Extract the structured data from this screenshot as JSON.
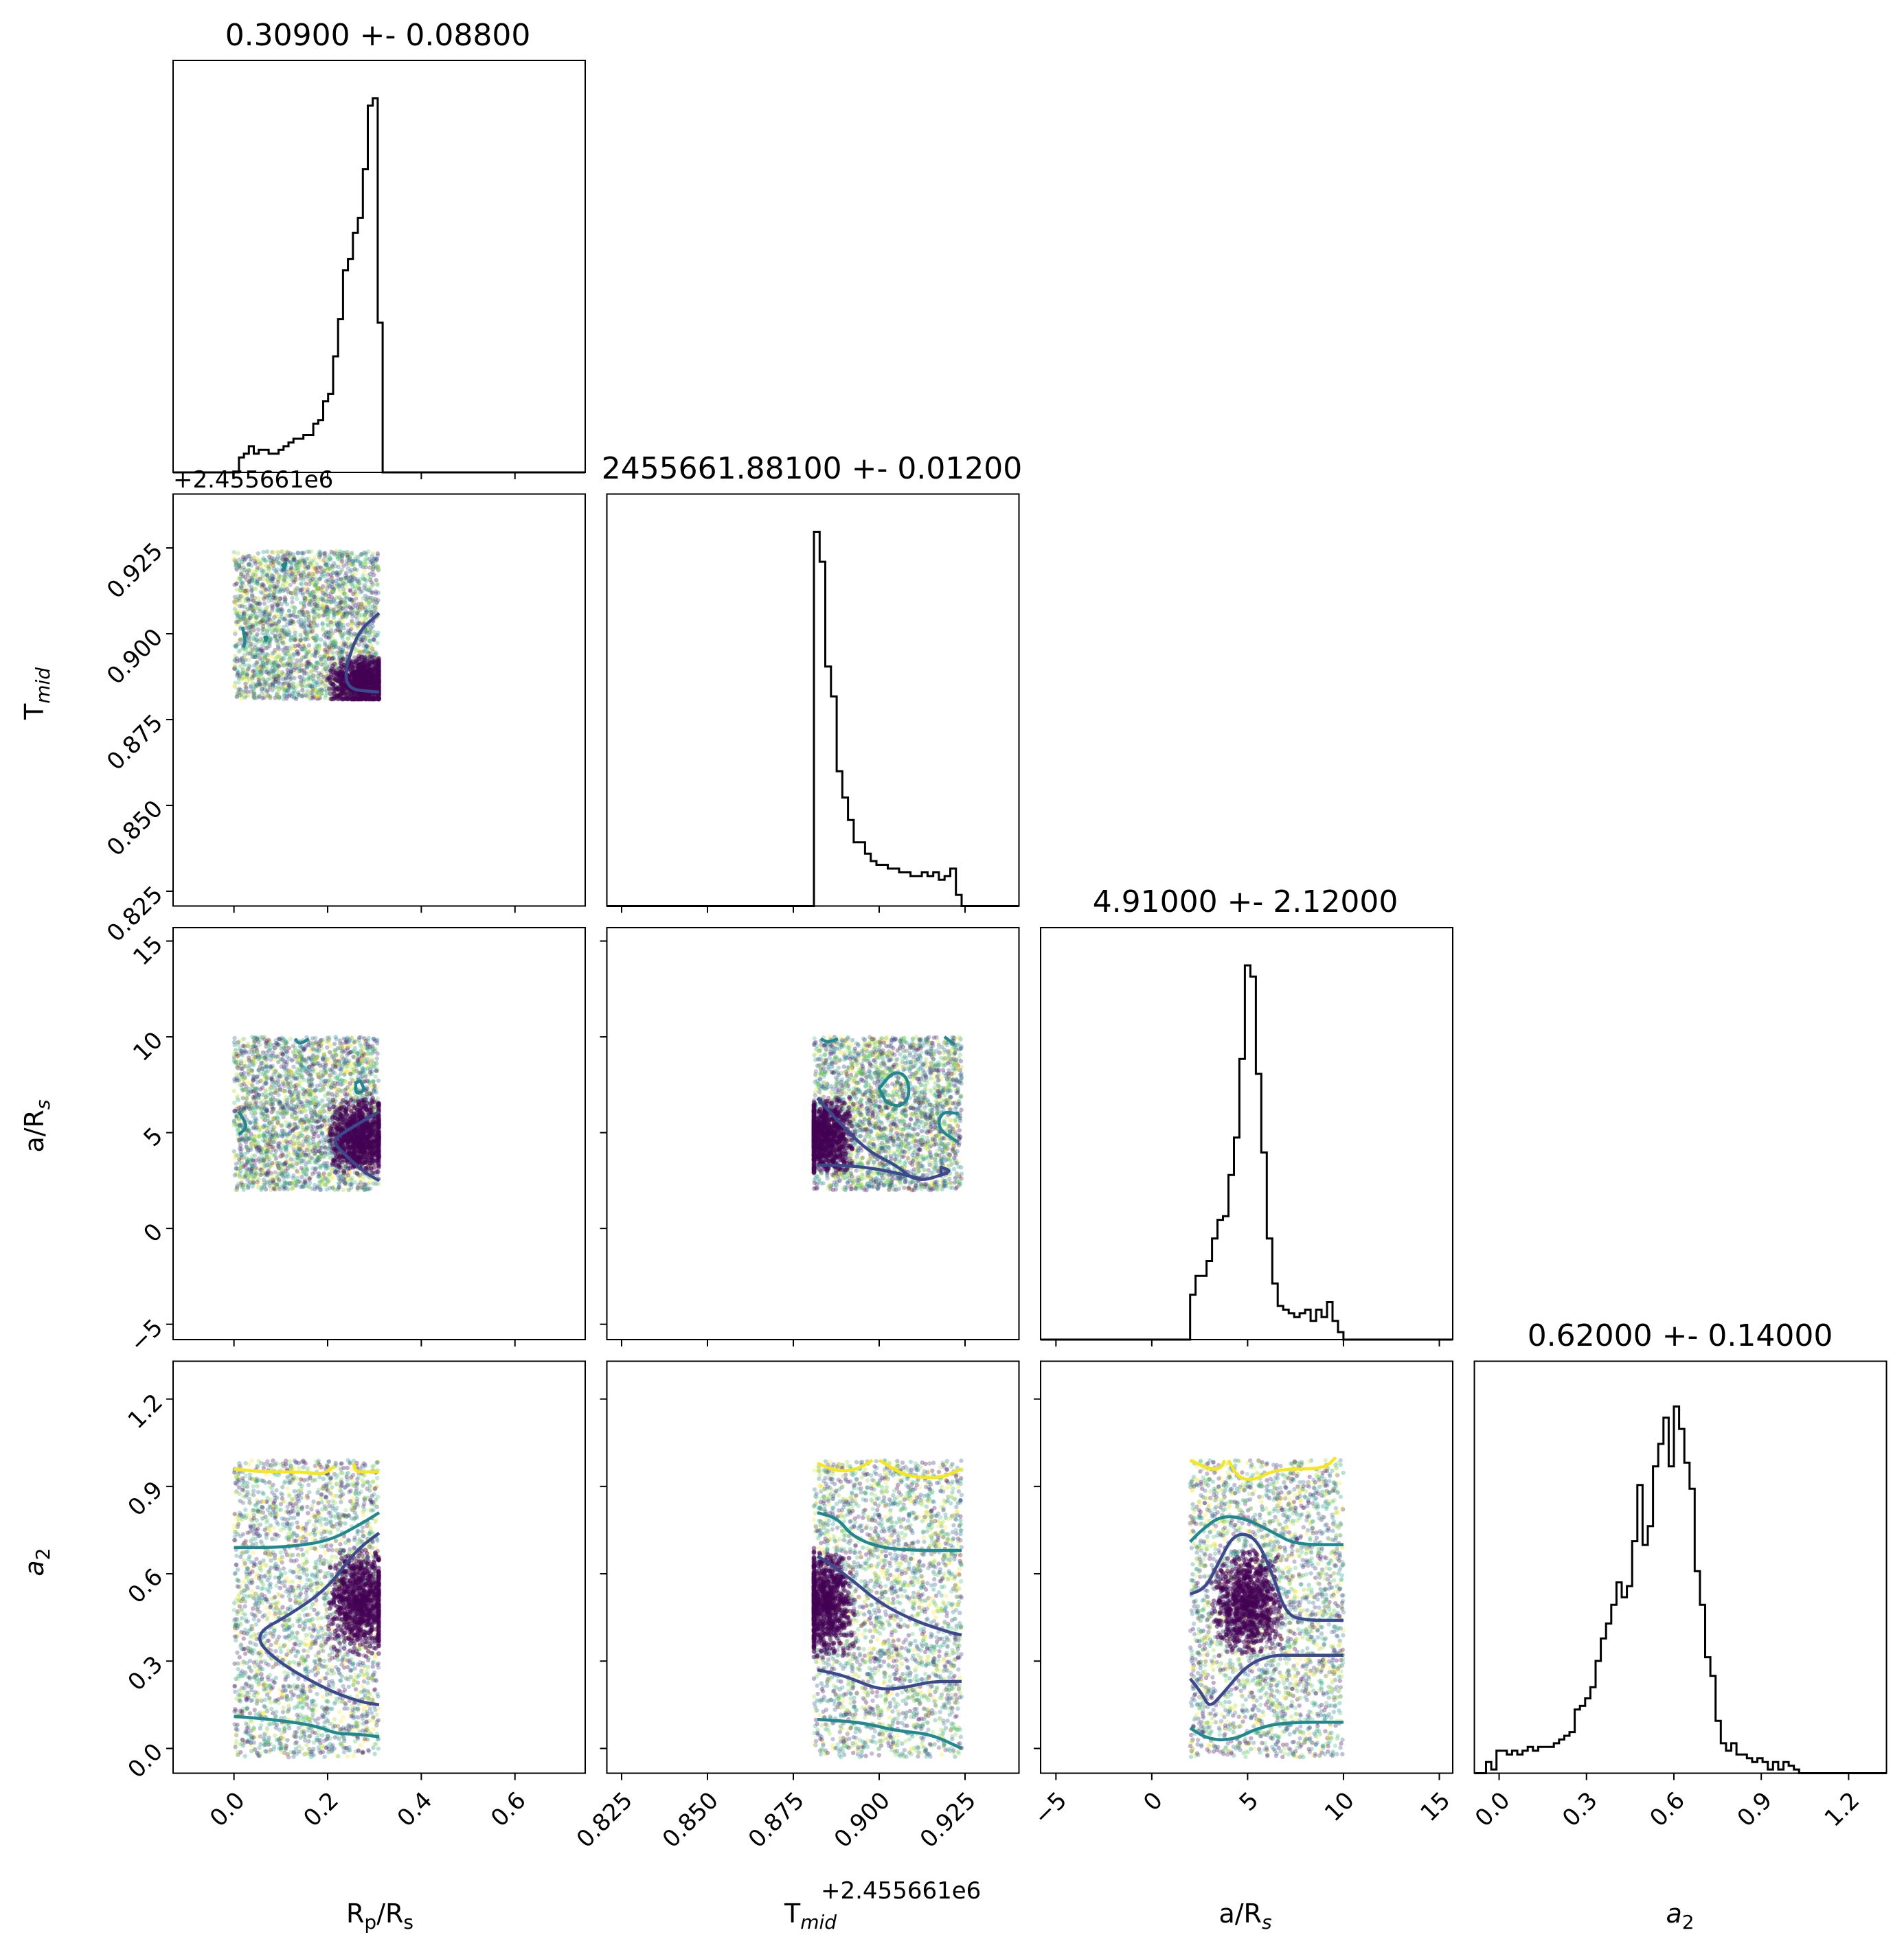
{
  "chart_data": {
    "type": "corner",
    "parameters": [
      {
        "symbol": "R",
        "sub": "p",
        "rest": "/R",
        "sub2": "s",
        "title": "0.30900 +- 0.08800"
      },
      {
        "symbol": "T",
        "sub": "mid",
        "rest": "",
        "sub2": "",
        "title": "2455661.88100 +- 0.01200",
        "offset": "+2.455661e6"
      },
      {
        "symbol": "a/R",
        "sub": "s",
        "rest": "",
        "sub2": "",
        "title": "4.91000 +- 2.12000"
      },
      {
        "symbol": "a",
        "sub": "2",
        "rest": "",
        "sub2": "",
        "title": "0.62000 +- 0.14000",
        "italic": true
      }
    ],
    "ranges": [
      [
        -0.13,
        0.75
      ],
      [
        0.8207,
        0.9407
      ],
      [
        -5.8,
        15.7
      ],
      [
        -0.085,
        1.33
      ]
    ],
    "ticks": [
      [
        0.0,
        0.2,
        0.4,
        0.6
      ],
      [
        0.825,
        0.85,
        0.875,
        0.9,
        0.925
      ],
      [
        -5,
        0,
        5,
        10,
        15
      ],
      [
        0.0,
        0.3,
        0.6,
        0.9,
        1.2
      ]
    ],
    "tick_labels": [
      [
        "0.0",
        "0.2",
        "0.4",
        "0.6"
      ],
      [
        "0.825",
        "0.850",
        "0.875",
        "0.900",
        "0.925"
      ],
      [
        "−5",
        "0",
        "5",
        "10",
        "15"
      ],
      [
        "0.0",
        "0.3",
        "0.6",
        "0.9",
        "1.2"
      ]
    ],
    "sample_bounds": [
      [
        0.0,
        0.309
      ],
      [
        0.881,
        0.924
      ],
      [
        2.0,
        10.0
      ],
      [
        -0.03,
        0.99
      ]
    ],
    "histograms": [
      {
        "edges": [
          0.0,
          0.3175
        ],
        "heights": [
          0.0,
          0.04,
          0.05,
          0.07,
          0.05,
          0.06,
          0.06,
          0.05,
          0.05,
          0.06,
          0.07,
          0.08,
          0.09,
          0.09,
          0.1,
          0.1,
          0.13,
          0.14,
          0.19,
          0.21,
          0.31,
          0.41,
          0.54,
          0.57,
          0.64,
          0.68,
          0.81,
          0.98,
          1.0,
          0.4
        ]
      },
      {
        "edges": [
          0.881,
          0.924
        ],
        "heights": [
          1.0,
          0.92,
          0.64,
          0.56,
          0.36,
          0.29,
          0.23,
          0.17,
          0.17,
          0.14,
          0.12,
          0.11,
          0.11,
          0.1,
          0.1,
          0.09,
          0.09,
          0.08,
          0.08,
          0.09,
          0.08,
          0.09,
          0.07,
          0.08,
          0.1,
          0.03
        ]
      },
      {
        "edges": [
          2.0,
          10.0
        ],
        "heights": [
          0.12,
          0.17,
          0.17,
          0.21,
          0.27,
          0.32,
          0.33,
          0.44,
          0.54,
          0.75,
          1.0,
          0.97,
          0.71,
          0.5,
          0.27,
          0.15,
          0.09,
          0.08,
          0.07,
          0.06,
          0.07,
          0.08,
          0.05,
          0.08,
          0.06,
          0.1,
          0.05,
          0.02
        ]
      },
      {
        "edges": [
          -0.045,
          1.03
        ],
        "heights": [
          0.03,
          0.01,
          0.06,
          0.06,
          0.05,
          0.06,
          0.05,
          0.06,
          0.07,
          0.06,
          0.07,
          0.07,
          0.07,
          0.08,
          0.09,
          0.1,
          0.11,
          0.17,
          0.18,
          0.2,
          0.23,
          0.3,
          0.36,
          0.4,
          0.45,
          0.51,
          0.47,
          0.5,
          0.62,
          0.77,
          0.61,
          0.66,
          0.82,
          0.88,
          0.95,
          0.82,
          0.98,
          0.92,
          0.83,
          0.76,
          0.54,
          0.45,
          0.31,
          0.26,
          0.14,
          0.08,
          0.06,
          0.08,
          0.05,
          0.05,
          0.04,
          0.03,
          0.04,
          0.03,
          0.01,
          0.03,
          0.01,
          0.03,
          0.02,
          0.01
        ]
      }
    ],
    "scatter_points_per_panel": 2600,
    "series_colors": {
      "hist": "#000000",
      "dense": "#440154",
      "c1": "#3b4a8c",
      "c2": "#21888d",
      "c3": "#f5e61e",
      "light": "#c5df3a"
    },
    "contours": {
      "1,0": [
        {
          "color": "#3b4a8c",
          "points": [
            [
              0.31,
              0.906
            ],
            [
              0.26,
              0.9
            ],
            [
              0.228,
              0.884
            ],
            [
              0.31,
              0.883
            ]
          ]
        },
        {
          "color": "#21888d",
          "loop": true,
          "points": [
            [
              0.108,
              0.919
            ],
            [
              0.112,
              0.921
            ],
            [
              0.104,
              0.92
            ]
          ]
        },
        {
          "color": "#21888d",
          "points": [
            [
              0.018,
              0.902
            ],
            [
              0.025,
              0.898
            ],
            [
              0.02,
              0.896
            ]
          ]
        },
        {
          "color": "#21888d",
          "loop": true,
          "points": [
            [
              0.068,
              0.898
            ],
            [
              0.072,
              0.899
            ],
            [
              0.066,
              0.899
            ]
          ]
        }
      ],
      "2,0": [
        {
          "color": "#3b4a8c",
          "points": [
            [
              0.31,
              6.1
            ],
            [
              0.24,
              5.1
            ],
            [
              0.21,
              4.6
            ],
            [
              0.23,
              4.0
            ],
            [
              0.28,
              2.9
            ],
            [
              0.31,
              2.5
            ]
          ]
        },
        {
          "color": "#21888d",
          "loop": true,
          "points": [
            [
              0.27,
              7.7
            ],
            [
              0.28,
              7.2
            ],
            [
              0.26,
              7.0
            ],
            [
              0.26,
              7.6
            ]
          ]
        },
        {
          "color": "#21888d",
          "points": [
            [
              0.01,
              6.1
            ],
            [
              0.03,
              5.3
            ],
            [
              0.01,
              4.9
            ]
          ]
        },
        {
          "color": "#21888d",
          "points": [
            [
              0.13,
              9.9
            ],
            [
              0.14,
              9.6
            ],
            [
              0.16,
              9.9
            ]
          ]
        }
      ],
      "3,0": [
        {
          "color": "#f5e61e",
          "points": [
            [
              0.0,
              0.96
            ],
            [
              0.06,
              0.95
            ],
            [
              0.15,
              0.95
            ],
            [
              0.19,
              0.94
            ],
            [
              0.215,
              0.97
            ]
          ]
        },
        {
          "color": "#f5e61e",
          "points": [
            [
              0.255,
              0.98
            ],
            [
              0.26,
              0.95
            ],
            [
              0.28,
              0.95
            ],
            [
              0.31,
              0.95
            ]
          ]
        },
        {
          "color": "#21888d",
          "points": [
            [
              0.0,
              0.69
            ],
            [
              0.1,
              0.69
            ],
            [
              0.2,
              0.71
            ],
            [
              0.27,
              0.77
            ],
            [
              0.31,
              0.81
            ]
          ]
        },
        {
          "color": "#3b4a8c",
          "points": [
            [
              0.31,
              0.74
            ],
            [
              0.26,
              0.68
            ],
            [
              0.2,
              0.55
            ],
            [
              0.12,
              0.46
            ],
            [
              0.04,
              0.39
            ],
            [
              0.09,
              0.3
            ],
            [
              0.2,
              0.2
            ],
            [
              0.27,
              0.16
            ],
            [
              0.31,
              0.15
            ]
          ]
        },
        {
          "color": "#21888d",
          "points": [
            [
              0.0,
              0.11
            ],
            [
              0.08,
              0.1
            ],
            [
              0.17,
              0.08
            ],
            [
              0.22,
              0.05
            ],
            [
              0.26,
              0.05
            ],
            [
              0.31,
              0.04
            ]
          ]
        }
      ],
      "2,1": [
        {
          "color": "#3b4a8c",
          "points": [
            [
              0.882,
              6.8
            ],
            [
              0.889,
              5.4
            ],
            [
              0.897,
              4.0
            ],
            [
              0.905,
              3.3
            ],
            [
              0.911,
              2.4
            ],
            [
              0.92,
              2.9
            ]
          ]
        },
        {
          "color": "#3b4a8c",
          "points": [
            [
              0.882,
              3.3
            ],
            [
              0.89,
              3.3
            ],
            [
              0.9,
              3.1
            ],
            [
              0.912,
              2.6
            ]
          ]
        },
        {
          "color": "#3b4a8c",
          "loop": true,
          "points": [
            [
              0.918,
              2.8
            ],
            [
              0.921,
              3.0
            ],
            [
              0.918,
              3.2
            ]
          ]
        },
        {
          "color": "#21888d",
          "loop": true,
          "points": [
            [
              0.9,
              7.3
            ],
            [
              0.904,
              8.2
            ],
            [
              0.908,
              8.0
            ],
            [
              0.909,
              6.9
            ],
            [
              0.906,
              6.3
            ],
            [
              0.902,
              6.6
            ]
          ]
        },
        {
          "color": "#21888d",
          "points": [
            [
              0.923,
              6.0
            ],
            [
              0.918,
              6.1
            ],
            [
              0.917,
              5.2
            ],
            [
              0.923,
              4.5
            ]
          ]
        },
        {
          "color": "#21888d",
          "points": [
            [
              0.883,
              9.9
            ],
            [
              0.885,
              9.7
            ],
            [
              0.888,
              9.9
            ]
          ]
        },
        {
          "color": "#21888d",
          "points": [
            [
              0.919,
              10.0
            ],
            [
              0.922,
              9.6
            ]
          ]
        }
      ],
      "3,1": [
        {
          "color": "#f5e61e",
          "points": [
            [
              0.882,
              0.98
            ],
            [
              0.888,
              0.95
            ],
            [
              0.894,
              0.96
            ],
            [
              0.898,
              0.99
            ]
          ]
        },
        {
          "color": "#f5e61e",
          "points": [
            [
              0.9,
              0.99
            ],
            [
              0.907,
              0.94
            ],
            [
              0.913,
              0.93
            ],
            [
              0.918,
              0.93
            ],
            [
              0.924,
              0.96
            ]
          ]
        },
        {
          "color": "#21888d",
          "points": [
            [
              0.882,
              0.81
            ],
            [
              0.888,
              0.79
            ],
            [
              0.892,
              0.73
            ],
            [
              0.9,
              0.69
            ],
            [
              0.91,
              0.68
            ],
            [
              0.924,
              0.68
            ]
          ]
        },
        {
          "color": "#3b4a8c",
          "points": [
            [
              0.882,
              0.66
            ],
            [
              0.885,
              0.64
            ],
            [
              0.892,
              0.58
            ],
            [
              0.9,
              0.5
            ],
            [
              0.91,
              0.44
            ],
            [
              0.92,
              0.4
            ],
            [
              0.924,
              0.39
            ]
          ]
        },
        {
          "color": "#3b4a8c",
          "points": [
            [
              0.882,
              0.27
            ],
            [
              0.89,
              0.25
            ],
            [
              0.9,
              0.2
            ],
            [
              0.908,
              0.21
            ],
            [
              0.915,
              0.23
            ],
            [
              0.924,
              0.23
            ]
          ]
        },
        {
          "color": "#21888d",
          "points": [
            [
              0.882,
              0.1
            ],
            [
              0.895,
              0.09
            ],
            [
              0.905,
              0.06
            ],
            [
              0.915,
              0.05
            ],
            [
              0.924,
              0.0
            ]
          ]
        }
      ],
      "3,2": [
        {
          "color": "#f5e61e",
          "points": [
            [
              2.0,
              0.99
            ],
            [
              3.0,
              0.96
            ],
            [
              3.6,
              0.96
            ],
            [
              3.8,
              0.99
            ]
          ]
        },
        {
          "color": "#f5e61e",
          "points": [
            [
              4.0,
              0.99
            ],
            [
              4.5,
              0.93
            ],
            [
              5.3,
              0.92
            ],
            [
              6.5,
              0.96
            ],
            [
              9.0,
              0.96
            ],
            [
              9.6,
              1.0
            ]
          ]
        },
        {
          "color": "#21888d",
          "points": [
            [
              2.0,
              0.71
            ],
            [
              2.6,
              0.75
            ],
            [
              3.6,
              0.8
            ],
            [
              4.9,
              0.79
            ],
            [
              6.4,
              0.74
            ],
            [
              7.5,
              0.7
            ],
            [
              10.0,
              0.7
            ]
          ]
        },
        {
          "color": "#3b4a8c",
          "points": [
            [
              2.0,
              0.53
            ],
            [
              2.8,
              0.55
            ],
            [
              3.5,
              0.64
            ],
            [
              4.3,
              0.74
            ],
            [
              5.4,
              0.73
            ],
            [
              6.3,
              0.6
            ],
            [
              7.0,
              0.46
            ],
            [
              8.0,
              0.44
            ],
            [
              10.0,
              0.44
            ]
          ]
        },
        {
          "color": "#3b4a8c",
          "points": [
            [
              2.0,
              0.24
            ],
            [
              2.6,
              0.19
            ],
            [
              3.0,
              0.14
            ],
            [
              3.6,
              0.18
            ],
            [
              5.0,
              0.29
            ],
            [
              6.3,
              0.32
            ],
            [
              7.2,
              0.32
            ],
            [
              10.0,
              0.32
            ]
          ]
        },
        {
          "color": "#21888d",
          "points": [
            [
              2.0,
              0.07
            ],
            [
              3.0,
              0.03
            ],
            [
              4.3,
              0.03
            ],
            [
              5.5,
              0.07
            ],
            [
              7.0,
              0.09
            ],
            [
              10.0,
              0.09
            ]
          ]
        }
      ]
    }
  }
}
